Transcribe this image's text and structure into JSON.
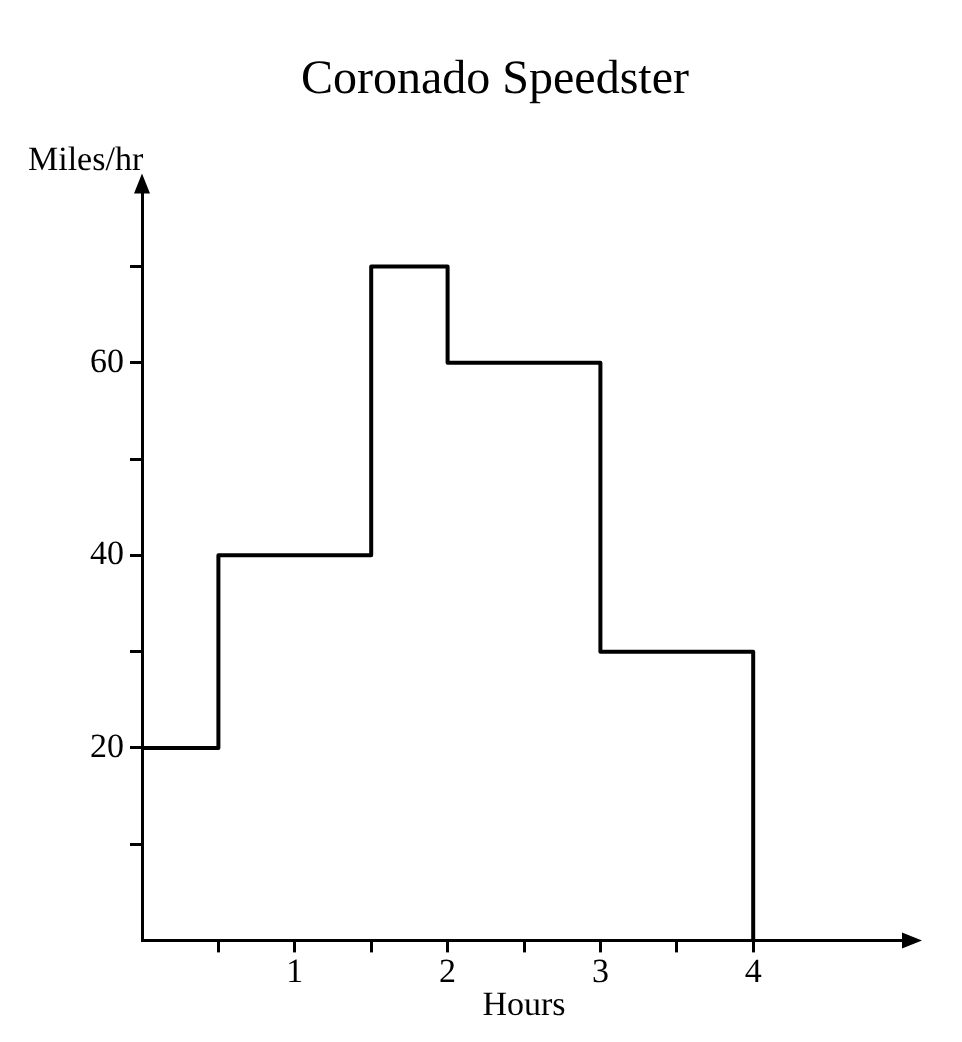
{
  "chart_data": {
    "type": "step",
    "title": "Coronado Speedster",
    "xlabel": "Hours",
    "ylabel": "Miles/hr",
    "x": [
      0,
      0.5,
      1.5,
      2,
      3,
      4
    ],
    "series": [
      {
        "color": "#000000",
        "values": [
          20,
          40,
          70,
          60,
          30,
          0
        ]
      }
    ],
    "xlim": [
      0,
      5
    ],
    "ylim": [
      0,
      78
    ],
    "xticks": [
      {
        "value": 0.5,
        "label": null
      },
      1,
      {
        "value": 1.5,
        "label": null
      },
      2,
      {
        "value": 2.5,
        "label": null
      },
      3,
      {
        "value": 3.5,
        "label": null
      },
      4
    ],
    "yticks": [
      {
        "value": 10,
        "label": null
      },
      20,
      {
        "value": 30,
        "label": null
      },
      40,
      {
        "value": 50,
        "label": null
      },
      60,
      {
        "value": 70,
        "label": null
      }
    ],
    "grid": false,
    "legend": false,
    "marker": "none",
    "line_style": "solid"
  }
}
